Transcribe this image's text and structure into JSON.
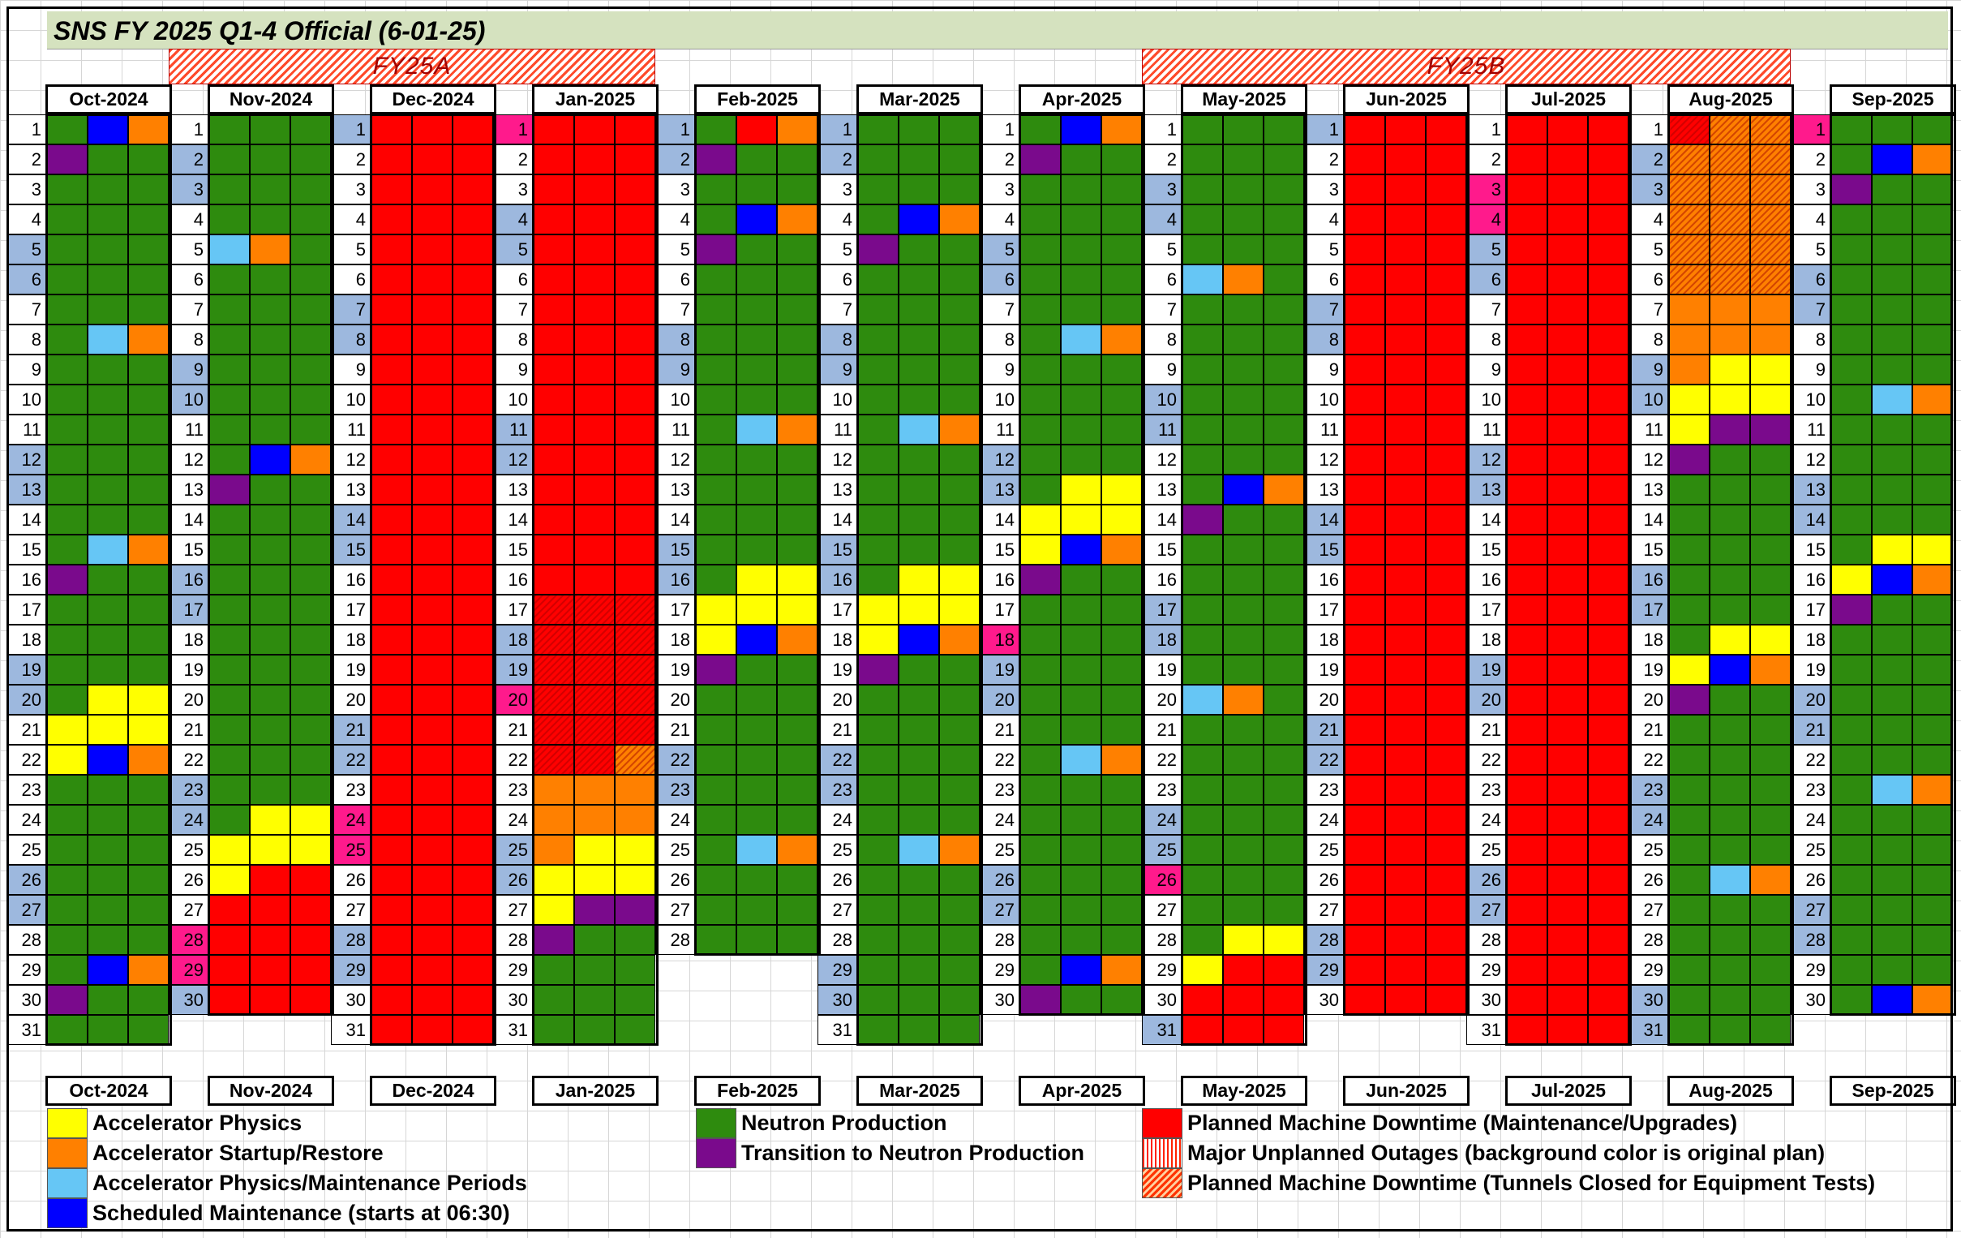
{
  "title": "SNS FY 2025 Q1-4 Official (6-01-25)",
  "fiscal_periods": [
    "FY25A",
    "FY25B"
  ],
  "colors": {
    "G": "#2e8b0e",
    "R": "#ff0000",
    "Y": "#ffff00",
    "O": "#ff8000",
    "L": "#66c6f5",
    "B": "#0000ff",
    "P": "#7a0a8c"
  },
  "months": [
    {
      "label": "Oct-2024",
      "days": 31,
      "grid": [
        "GBO",
        "PGG",
        "GGG",
        "GGG",
        "GGG",
        "GGG",
        "GGG",
        "GLO",
        "GGG",
        "GGG",
        "GGG",
        "GGG",
        "GGG",
        "GGG",
        "GLO",
        "PGG",
        "GGG",
        "GGG",
        "GGG",
        "GYY",
        "YYY",
        "YBO",
        "GGG",
        "GGG",
        "GGG",
        "GGG",
        "GGG",
        "GGG",
        "GBO",
        "PGG",
        "GGG"
      ],
      "hatch": [],
      "blue_days": [
        5,
        6,
        12,
        13,
        19,
        20,
        26,
        27
      ],
      "pink_days": []
    },
    {
      "label": "Nov-2024",
      "days": 30,
      "grid": [
        "GGG",
        "GGG",
        "GGG",
        "GGG",
        "LOG",
        "GGG",
        "GGG",
        "GGG",
        "GGG",
        "GGG",
        "GGG",
        "GBO",
        "PGG",
        "GGG",
        "GGG",
        "GGG",
        "GGG",
        "GGG",
        "GGG",
        "GGG",
        "GGG",
        "GGG",
        "GGG",
        "GYY",
        "YYY",
        "YRR",
        "RRR",
        "RRR",
        "RRR",
        "RRR"
      ],
      "hatch": [],
      "blue_days": [
        2,
        3,
        9,
        10,
        16,
        17,
        23,
        24,
        30
      ],
      "pink_days": [
        28,
        29
      ]
    },
    {
      "label": "Dec-2024",
      "days": 31,
      "grid": [
        "RRR",
        "RRR",
        "RRR",
        "RRR",
        "RRR",
        "RRR",
        "RRR",
        "RRR",
        "RRR",
        "RRR",
        "RRR",
        "RRR",
        "RRR",
        "RRR",
        "RRR",
        "RRR",
        "RRR",
        "RRR",
        "RRR",
        "RRR",
        "RRR",
        "RRR",
        "RRR",
        "RRR",
        "RRR",
        "RRR",
        "RRR",
        "RRR",
        "RRR",
        "RRR",
        "RRR"
      ],
      "hatch": [],
      "blue_days": [
        1,
        7,
        8,
        14,
        15,
        21,
        22,
        28,
        29
      ],
      "pink_days": [
        24,
        25
      ]
    },
    {
      "label": "Jan-2025",
      "days": 31,
      "grid": [
        "RRR",
        "RRR",
        "RRR",
        "RRR",
        "RRR",
        "RRR",
        "RRR",
        "RRR",
        "RRR",
        "RRR",
        "RRR",
        "RRR",
        "RRR",
        "RRR",
        "RRR",
        "RRR",
        "RRR",
        "RRR",
        "RRR",
        "RRR",
        "RRR",
        "RRO",
        "OOO",
        "OOO",
        "OYY",
        "YYY",
        "YPP",
        "PGG",
        "GGG",
        "GGG",
        "GGG"
      ],
      "hatch": [
        17,
        18,
        19,
        20,
        21,
        22
      ],
      "blue_days": [
        4,
        5,
        11,
        12,
        18,
        19,
        25,
        26
      ],
      "pink_days": [
        1,
        20
      ]
    },
    {
      "label": "Feb-2025",
      "days": 28,
      "grid": [
        "GRO",
        "PGG",
        "GGG",
        "GBO",
        "PGG",
        "GGG",
        "GGG",
        "GGG",
        "GGG",
        "GGG",
        "GLO",
        "GGG",
        "GGG",
        "GGG",
        "GGG",
        "GYY",
        "YYY",
        "YBO",
        "PGG",
        "GGG",
        "GGG",
        "GGG",
        "GGG",
        "GGG",
        "GLO",
        "GGG",
        "GGG",
        "GGG"
      ],
      "hatch": [],
      "blue_days": [
        1,
        2,
        8,
        9,
        15,
        16,
        22,
        23
      ],
      "pink_days": []
    },
    {
      "label": "Mar-2025",
      "days": 31,
      "grid": [
        "GGG",
        "GGG",
        "GGG",
        "GBO",
        "PGG",
        "GGG",
        "GGG",
        "GGG",
        "GGG",
        "GGG",
        "GLO",
        "GGG",
        "GGG",
        "GGG",
        "GGG",
        "GYY",
        "YYY",
        "YBO",
        "PGG",
        "GGG",
        "GGG",
        "GGG",
        "GGG",
        "GGG",
        "GLO",
        "GGG",
        "GGG",
        "GGG",
        "GGG",
        "GGG",
        "GGG"
      ],
      "hatch": [],
      "blue_days": [
        1,
        2,
        8,
        9,
        15,
        16,
        22,
        23,
        29,
        30
      ],
      "pink_days": []
    },
    {
      "label": "Apr-2025",
      "days": 30,
      "grid": [
        "GBO",
        "PGG",
        "GGG",
        "GGG",
        "GGG",
        "GGG",
        "GGG",
        "GLO",
        "GGG",
        "GGG",
        "GGG",
        "GGG",
        "GYY",
        "YYY",
        "YBO",
        "PGG",
        "GGG",
        "GGG",
        "GGG",
        "GGG",
        "GGG",
        "GLO",
        "GGG",
        "GGG",
        "GGG",
        "GGG",
        "GGG",
        "GGG",
        "GBO",
        "PGG"
      ],
      "hatch": [],
      "blue_days": [
        5,
        6,
        12,
        13,
        19,
        20,
        26,
        27
      ],
      "pink_days": [
        18
      ]
    },
    {
      "label": "May-2025",
      "days": 31,
      "grid": [
        "GGG",
        "GGG",
        "GGG",
        "GGG",
        "GGG",
        "LOG",
        "GGG",
        "GGG",
        "GGG",
        "GGG",
        "GGG",
        "GGG",
        "GBO",
        "PGG",
        "GGG",
        "GGG",
        "GGG",
        "GGG",
        "GGG",
        "LOG",
        "GGG",
        "GGG",
        "GGG",
        "GGG",
        "GGG",
        "GGG",
        "GGG",
        "GYY",
        "YRR",
        "RRR",
        "RRR"
      ],
      "hatch": [],
      "blue_days": [
        3,
        4,
        10,
        11,
        17,
        18,
        24,
        25,
        31
      ],
      "pink_days": [
        26
      ]
    },
    {
      "label": "Jun-2025",
      "days": 30,
      "grid": [
        "RRR",
        "RRR",
        "RRR",
        "RRR",
        "RRR",
        "RRR",
        "RRR",
        "RRR",
        "RRR",
        "RRR",
        "RRR",
        "RRR",
        "RRR",
        "RRR",
        "RRR",
        "RRR",
        "RRR",
        "RRR",
        "RRR",
        "RRR",
        "RRR",
        "RRR",
        "RRR",
        "RRR",
        "RRR",
        "RRR",
        "RRR",
        "RRR",
        "RRR",
        "RRR"
      ],
      "hatch": [],
      "blue_days": [
        1,
        7,
        8,
        14,
        15,
        21,
        22,
        28,
        29
      ],
      "pink_days": []
    },
    {
      "label": "Jul-2025",
      "days": 31,
      "grid": [
        "RRR",
        "RRR",
        "RRR",
        "RRR",
        "RRR",
        "RRR",
        "RRR",
        "RRR",
        "RRR",
        "RRR",
        "RRR",
        "RRR",
        "RRR",
        "RRR",
        "RRR",
        "RRR",
        "RRR",
        "RRR",
        "RRR",
        "RRR",
        "RRR",
        "RRR",
        "RRR",
        "RRR",
        "RRR",
        "RRR",
        "RRR",
        "RRR",
        "RRR",
        "RRR",
        "RRR"
      ],
      "hatch": [],
      "blue_days": [
        5,
        6,
        12,
        13,
        19,
        20,
        26,
        27
      ],
      "pink_days": [
        3,
        4
      ]
    },
    {
      "label": "Aug-2025",
      "days": 31,
      "grid": [
        "ROO",
        "OOO",
        "OOO",
        "OOO",
        "OOO",
        "OOO",
        "OOO",
        "OOO",
        "OYY",
        "YYY",
        "YPP",
        "PGG",
        "GGG",
        "GGG",
        "GGG",
        "GGG",
        "GGG",
        "GYY",
        "YBO",
        "PGG",
        "GGG",
        "GGG",
        "GGG",
        "GGG",
        "GGG",
        "GLO",
        "GGG",
        "GGG",
        "GGG",
        "GGG",
        "GGG"
      ],
      "hatch": [
        1,
        2,
        3,
        4,
        5,
        6
      ],
      "blue_days": [
        2,
        3,
        9,
        10,
        16,
        17,
        23,
        24,
        30,
        31
      ],
      "pink_days": []
    },
    {
      "label": "Sep-2025",
      "days": 30,
      "grid": [
        "GGG",
        "GBO",
        "PGG",
        "GGG",
        "GGG",
        "GGG",
        "GGG",
        "GGG",
        "GGG",
        "GLO",
        "GGG",
        "GGG",
        "GGG",
        "GGG",
        "GYY",
        "YBO",
        "PGG",
        "GGG",
        "GGG",
        "GGG",
        "GGG",
        "GGG",
        "GLO",
        "GGG",
        "GGG",
        "GGG",
        "GGG",
        "GGG",
        "GGG",
        "GBO"
      ],
      "hatch": [],
      "blue_days": [
        6,
        7,
        13,
        14,
        20,
        21,
        27,
        28
      ],
      "pink_days": [
        1
      ]
    }
  ],
  "legend": [
    {
      "key": "Y",
      "label": "Accelerator Physics"
    },
    {
      "key": "O",
      "label": "Accelerator Startup/Restore"
    },
    {
      "key": "L",
      "label": "Accelerator Physics/Maintenance Periods"
    },
    {
      "key": "B",
      "label": "Scheduled Maintenance (starts at 06:30)"
    },
    {
      "key": "G",
      "label": "Neutron Production"
    },
    {
      "key": "P",
      "label": "Transition to Neutron Production"
    },
    {
      "key": "R",
      "label": "Planned Machine Downtime (Maintenance/Upgrades)"
    },
    {
      "key": "H",
      "label": "Major Unplanned Outages (background color is original plan)"
    },
    {
      "key": "T",
      "label": "Planned Machine Downtime (Tunnels Closed for Equipment Tests)"
    }
  ]
}
